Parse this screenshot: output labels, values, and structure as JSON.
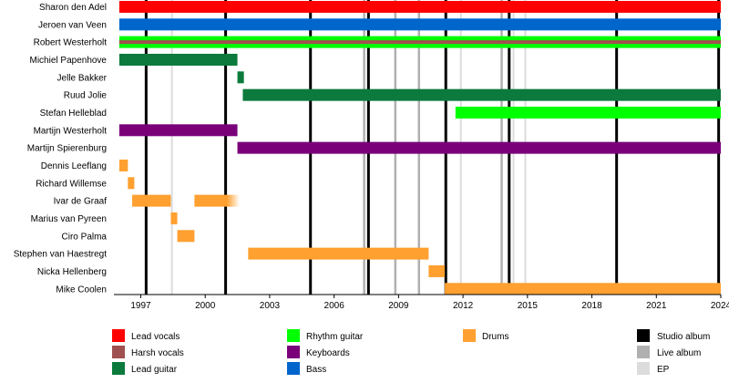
{
  "chart_data": {
    "type": "timeline",
    "title": "",
    "x_axis": {
      "range": [
        1995.75,
        2024.0
      ],
      "ticks": [
        "1997",
        "2000",
        "2003",
        "2006",
        "2009",
        "2012",
        "2015",
        "2018",
        "2021",
        "2024"
      ],
      "tick_values": [
        1997,
        2000,
        2003,
        2006,
        2009,
        2012,
        2015,
        2018,
        2021,
        2024
      ]
    },
    "members": [
      "Sharon den Adel",
      "Jeroen van Veen",
      "Robert Westerholt",
      "Michiel Papenhove",
      "Jelle Bakker",
      "Ruud Jolie",
      "Stefan Helleblad",
      "Martijn Westerholt",
      "Martijn Spierenburg",
      "Dennis Leeflang",
      "Richard Willemse",
      "Ivar de Graaf",
      "Marius van Pyreen",
      "Ciro Palma",
      "Stephen van Haestregt",
      "Nicka Hellenberg",
      "Mike Coolen"
    ],
    "roles": [
      {
        "key": "lead_vocals",
        "name": "Lead vocals",
        "color": "#ff0000"
      },
      {
        "key": "harsh_vocals",
        "name": "Harsh vocals",
        "color": "#a05050"
      },
      {
        "key": "lead_guitar",
        "name": "Lead guitar",
        "color": "#0b7a3c"
      },
      {
        "key": "rhythm_guitar",
        "name": "Rhythm guitar",
        "color": "#00ff00"
      },
      {
        "key": "keyboards",
        "name": "Keyboards",
        "color": "#7a007a"
      },
      {
        "key": "bass",
        "name": "Bass",
        "color": "#0066cc"
      },
      {
        "key": "drums",
        "name": "Drums",
        "color": "#ffa030"
      }
    ],
    "bars": [
      {
        "member": "Sharon den Adel",
        "role": "lead_vocals",
        "start": 1996.0,
        "end": 2024.0
      },
      {
        "member": "Jeroen van Veen",
        "role": "bass",
        "start": 1996.0,
        "end": 2024.0
      },
      {
        "member": "Robert Westerholt",
        "role": "rhythm_guitar",
        "start": 1996.0,
        "end": 2024.0
      },
      {
        "member": "Robert Westerholt",
        "role": "harsh_vocals",
        "start": 1996.0,
        "end": 2024.0,
        "inner": true
      },
      {
        "member": "Michiel Papenhove",
        "role": "lead_guitar",
        "start": 1996.0,
        "end": 2001.5
      },
      {
        "member": "Jelle Bakker",
        "role": "lead_guitar",
        "start": 2001.5,
        "end": 2001.8
      },
      {
        "member": "Ruud Jolie",
        "role": "lead_guitar",
        "start": 2001.75,
        "end": 2024.0
      },
      {
        "member": "Stefan Helleblad",
        "role": "rhythm_guitar",
        "start": 2011.65,
        "end": 2024.0
      },
      {
        "member": "Martijn Westerholt",
        "role": "keyboards",
        "start": 1996.0,
        "end": 2001.5
      },
      {
        "member": "Martijn Spierenburg",
        "role": "keyboards",
        "start": 2001.5,
        "end": 2024.0
      },
      {
        "member": "Dennis Leeflang",
        "role": "drums",
        "start": 1996.0,
        "end": 1996.4
      },
      {
        "member": "Richard Willemse",
        "role": "drums",
        "start": 1996.4,
        "end": 1996.7
      },
      {
        "member": "Ivar de Graaf",
        "role": "drums",
        "start": 1996.6,
        "end": 1998.4
      },
      {
        "member": "Ivar de Graaf",
        "role": "drums",
        "start": 1999.5,
        "end": 2001.6,
        "fade": true
      },
      {
        "member": "Marius van Pyreen",
        "role": "drums",
        "start": 1998.4,
        "end": 1998.7
      },
      {
        "member": "Ciro Palma",
        "role": "drums",
        "start": 1998.7,
        "end": 1999.5
      },
      {
        "member": "Stephen van Haestregt",
        "role": "drums",
        "start": 2002.0,
        "end": 2010.4
      },
      {
        "member": "Nicka Hellenberg",
        "role": "drums",
        "start": 2010.4,
        "end": 2011.15
      },
      {
        "member": "Mike Coolen",
        "role": "drums",
        "start": 2011.15,
        "end": 2024.0
      }
    ],
    "events": [
      {
        "kind": "ep",
        "year": 1998.45
      },
      {
        "kind": "ep",
        "year": 2011.9
      },
      {
        "kind": "ep",
        "year": 2014.35
      },
      {
        "kind": "ep",
        "year": 2014.9
      },
      {
        "kind": "live",
        "year": 2007.4
      },
      {
        "kind": "live",
        "year": 2008.85
      },
      {
        "kind": "live",
        "year": 2009.95
      },
      {
        "kind": "live",
        "year": 2013.8
      },
      {
        "kind": "studio",
        "year": 1997.25
      },
      {
        "kind": "studio",
        "year": 2000.95
      },
      {
        "kind": "studio",
        "year": 2004.9
      },
      {
        "kind": "studio",
        "year": 2007.6
      },
      {
        "kind": "studio",
        "year": 2011.2
      },
      {
        "kind": "studio",
        "year": 2014.15
      },
      {
        "kind": "studio",
        "year": 2019.15
      },
      {
        "kind": "studio",
        "year": 2023.9
      }
    ],
    "event_styles": {
      "studio": {
        "name": "Studio album",
        "color": "#000000"
      },
      "live": {
        "name": "Live album",
        "color": "#b0b0b0"
      },
      "ep": {
        "name": "EP",
        "color": "#dcdcdc"
      }
    },
    "legend_placement": "bottom",
    "grid": false
  }
}
